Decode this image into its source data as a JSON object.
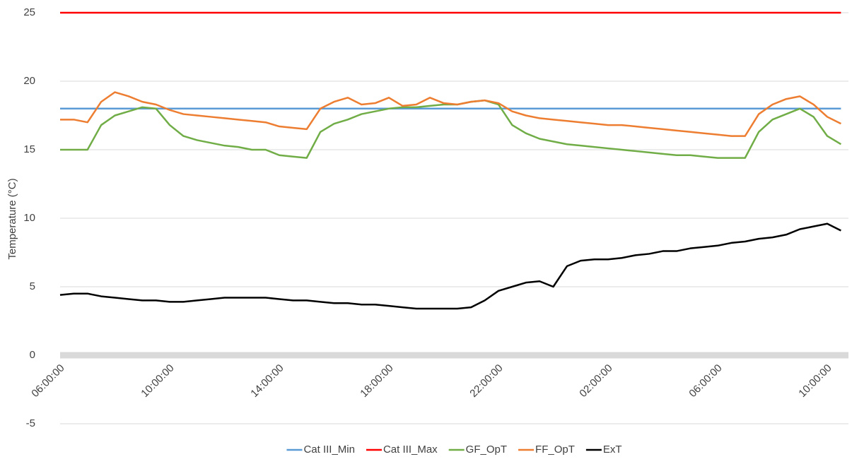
{
  "chart_data": {
    "type": "line",
    "y_label": "Temperature (°C)",
    "categories": [
      "06:00:00",
      null,
      null,
      null,
      null,
      null,
      null,
      null,
      "10:00:00",
      null,
      null,
      null,
      null,
      null,
      null,
      null,
      "14:00:00",
      null,
      null,
      null,
      null,
      null,
      null,
      null,
      "18:00:00",
      null,
      null,
      null,
      null,
      null,
      null,
      null,
      "22:00:00",
      null,
      null,
      null,
      null,
      null,
      null,
      null,
      "02:00:00",
      null,
      null,
      null,
      null,
      null,
      null,
      null,
      "06:00:00",
      null,
      null,
      null,
      null,
      null,
      null,
      null,
      "10:00:00",
      null
    ],
    "ylim": [
      -5,
      25
    ],
    "yticks": [
      -5,
      0,
      5,
      10,
      15,
      20,
      25
    ],
    "grid": true,
    "legend": "bottom",
    "series": [
      {
        "name": "Cat III_Min",
        "color": "#5b9bd5",
        "values": [
          18,
          18,
          18,
          18,
          18,
          18,
          18,
          18,
          18,
          18,
          18,
          18,
          18,
          18,
          18,
          18,
          18,
          18,
          18,
          18,
          18,
          18,
          18,
          18,
          18,
          18,
          18,
          18,
          18,
          18,
          18,
          18,
          18,
          18,
          18,
          18,
          18,
          18,
          18,
          18,
          18,
          18,
          18,
          18,
          18,
          18,
          18,
          18,
          18,
          18,
          18,
          18,
          18,
          18,
          18,
          18,
          18,
          18
        ]
      },
      {
        "name": "Cat III_Max",
        "color": "#ff0000",
        "values": [
          25,
          25,
          25,
          25,
          25,
          25,
          25,
          25,
          25,
          25,
          25,
          25,
          25,
          25,
          25,
          25,
          25,
          25,
          25,
          25,
          25,
          25,
          25,
          25,
          25,
          25,
          25,
          25,
          25,
          25,
          25,
          25,
          25,
          25,
          25,
          25,
          25,
          25,
          25,
          25,
          25,
          25,
          25,
          25,
          25,
          25,
          25,
          25,
          25,
          25,
          25,
          25,
          25,
          25,
          25,
          25,
          25,
          25
        ]
      },
      {
        "name": "GF_OpT",
        "color": "#70ad47",
        "values": [
          15.0,
          15.0,
          15.0,
          16.8,
          17.5,
          17.8,
          18.1,
          18.0,
          16.8,
          16.0,
          15.7,
          15.5,
          15.3,
          15.2,
          15.0,
          15.0,
          14.6,
          14.5,
          14.4,
          16.3,
          16.9,
          17.2,
          17.6,
          17.8,
          18.0,
          18.1,
          18.1,
          18.2,
          18.3,
          18.3,
          18.5,
          18.6,
          18.3,
          16.8,
          16.2,
          15.8,
          15.6,
          15.4,
          15.3,
          15.2,
          15.1,
          15.0,
          14.9,
          14.8,
          14.7,
          14.6,
          14.6,
          14.5,
          14.4,
          14.4,
          14.4,
          16.3,
          17.2,
          17.6,
          18.0,
          17.4,
          16.0,
          15.4
        ]
      },
      {
        "name": "FF_OpT",
        "color": "#ed7d31",
        "values": [
          17.2,
          17.2,
          17.0,
          18.5,
          19.2,
          18.9,
          18.5,
          18.3,
          17.9,
          17.6,
          17.5,
          17.4,
          17.3,
          17.2,
          17.1,
          17.0,
          16.7,
          16.6,
          16.5,
          18.0,
          18.5,
          18.8,
          18.3,
          18.4,
          18.8,
          18.2,
          18.3,
          18.8,
          18.4,
          18.3,
          18.5,
          18.6,
          18.4,
          17.8,
          17.5,
          17.3,
          17.2,
          17.1,
          17.0,
          16.9,
          16.8,
          16.8,
          16.7,
          16.6,
          16.5,
          16.4,
          16.3,
          16.2,
          16.1,
          16.0,
          16.0,
          17.6,
          18.3,
          18.7,
          18.9,
          18.3,
          17.4,
          16.9
        ]
      },
      {
        "name": "ExT",
        "color": "#000000",
        "values": [
          4.4,
          4.5,
          4.5,
          4.3,
          4.2,
          4.1,
          4.0,
          4.0,
          3.9,
          3.9,
          4.0,
          4.1,
          4.2,
          4.2,
          4.2,
          4.2,
          4.1,
          4.0,
          4.0,
          3.9,
          3.8,
          3.8,
          3.7,
          3.7,
          3.6,
          3.5,
          3.4,
          3.4,
          3.4,
          3.4,
          3.5,
          4.0,
          4.7,
          5.0,
          5.3,
          5.4,
          5.0,
          6.5,
          6.9,
          7.0,
          7.0,
          7.1,
          7.3,
          7.4,
          7.6,
          7.6,
          7.8,
          7.9,
          8.0,
          8.2,
          8.3,
          8.5,
          8.6,
          8.8,
          9.2,
          9.4,
          9.6,
          9.1
        ]
      }
    ]
  }
}
